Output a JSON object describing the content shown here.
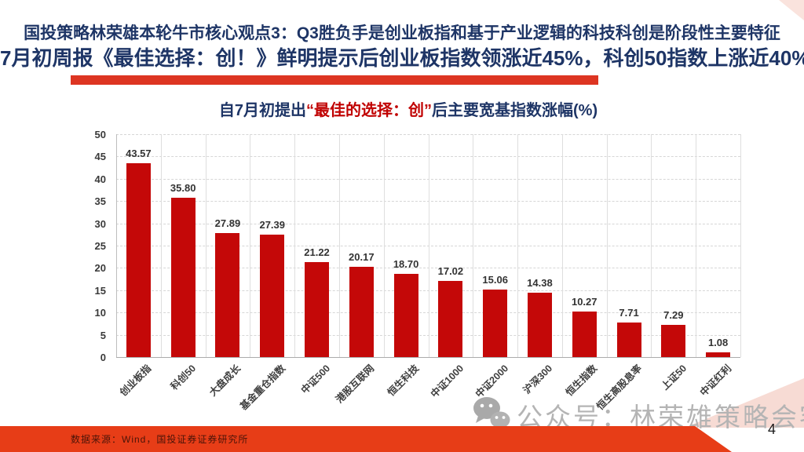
{
  "header": {
    "line1": "国投策略林荣雄本轮牛市核心观点3：Q3胜负手是创业板指和基于产业逻辑的科技科创是阶段性主要特征",
    "line2": "7月初周报《最佳选择：创！》鲜明提示后创业板指数领涨近45%，科创50指数上涨近40%"
  },
  "chart": {
    "title_prefix": "自7月初提出",
    "title_highlight": "“最佳的选择：创”",
    "title_suffix": "后主要宽基指数涨幅(%)"
  },
  "chart_data": {
    "type": "bar",
    "title": "自7月初提出“最佳的选择：创”后主要宽基指数涨幅(%)",
    "categories": [
      "创业板指",
      "科创50",
      "大盘成长",
      "基金重仓指数",
      "中证500",
      "港股互联网",
      "恒生科技",
      "中证1000",
      "中证2000",
      "沪深300",
      "恒生指数",
      "恒生高股息率",
      "上证50",
      "中证红利"
    ],
    "values": [
      43.57,
      35.8,
      27.89,
      27.39,
      21.22,
      20.17,
      18.7,
      17.02,
      15.06,
      14.38,
      10.27,
      7.71,
      7.29,
      1.08
    ],
    "xlabel": "",
    "ylabel": "",
    "ylim": [
      0,
      50
    ],
    "yticks": [
      0,
      5,
      10,
      15,
      20,
      25,
      30,
      35,
      40,
      45,
      50
    ],
    "grid": "horizontal dashed, vertical solid",
    "legend": "none",
    "bar_color": "#c40808",
    "value_label_decimals": 2
  },
  "watermark": {
    "icon": "wechat-icon",
    "text": "公众号：林荣雄策略会客厅"
  },
  "footer": {
    "source": "数据来源：Wind，国投证券证券研究所",
    "page_number": "4"
  },
  "colors": {
    "header_navy": "#1e3566",
    "title_highlight_red": "#c00000",
    "bar_red": "#c40808",
    "accent_band_red": "#e73d17",
    "underline_red": "#dd3522",
    "watermark_gray": "#b4b4b4",
    "corner_pink": "#f7dbd4"
  }
}
